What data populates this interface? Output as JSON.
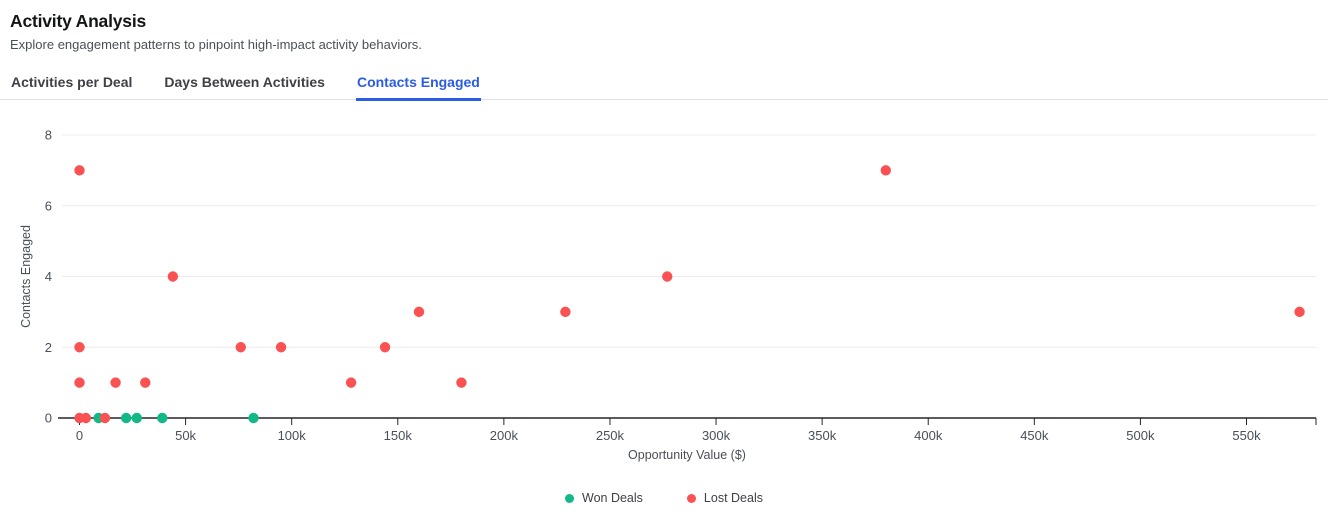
{
  "header": {
    "title": "Activity Analysis",
    "subtitle": "Explore engagement patterns to pinpoint high-impact activity behaviors."
  },
  "tabs": [
    {
      "label": "Activities per Deal",
      "active": false
    },
    {
      "label": "Days Between Activities",
      "active": false
    },
    {
      "label": "Contacts Engaged",
      "active": true
    }
  ],
  "colors": {
    "accent": "#2b5ce6",
    "won": "#12b886",
    "lost": "#fa5252",
    "grid": "#e9ecef",
    "axis": "#25262b",
    "tick_text": "#495057"
  },
  "chart_data": {
    "type": "scatter",
    "xlabel": "Opportunity Value ($)",
    "ylabel": "Contacts Engaged",
    "xlim": [
      -10000,
      585000
    ],
    "ylim": [
      0,
      8
    ],
    "grid": "horizontal",
    "legend_position": "bottom",
    "x_ticks": [
      {
        "value": 0,
        "label": "0"
      },
      {
        "value": 50000,
        "label": "50k"
      },
      {
        "value": 100000,
        "label": "100k"
      },
      {
        "value": 150000,
        "label": "150k"
      },
      {
        "value": 200000,
        "label": "200k"
      },
      {
        "value": 250000,
        "label": "250k"
      },
      {
        "value": 300000,
        "label": "300k"
      },
      {
        "value": 350000,
        "label": "350k"
      },
      {
        "value": 400000,
        "label": "400k"
      },
      {
        "value": 450000,
        "label": "450k"
      },
      {
        "value": 500000,
        "label": "500k"
      },
      {
        "value": 550000,
        "label": "550k"
      }
    ],
    "y_ticks": [
      {
        "value": 0,
        "label": "0"
      },
      {
        "value": 2,
        "label": "2"
      },
      {
        "value": 4,
        "label": "4"
      },
      {
        "value": 6,
        "label": "6"
      },
      {
        "value": 8,
        "label": "8"
      }
    ],
    "series": [
      {
        "name": "Won Deals",
        "color": "#12b886",
        "points": [
          [
            9000,
            0
          ],
          [
            22000,
            0
          ],
          [
            27000,
            0
          ],
          [
            39000,
            0
          ],
          [
            82000,
            0
          ]
        ]
      },
      {
        "name": "Lost Deals",
        "color": "#fa5252",
        "points": [
          [
            0,
            0
          ],
          [
            3000,
            0
          ],
          [
            12000,
            0
          ],
          [
            0,
            1
          ],
          [
            17000,
            1
          ],
          [
            31000,
            1
          ],
          [
            0,
            2
          ],
          [
            44000,
            4
          ],
          [
            76000,
            2
          ],
          [
            95000,
            2
          ],
          [
            128000,
            1
          ],
          [
            144000,
            2
          ],
          [
            160000,
            3
          ],
          [
            180000,
            1
          ],
          [
            229000,
            3
          ],
          [
            277000,
            4
          ],
          [
            0,
            7
          ],
          [
            380000,
            7
          ],
          [
            575000,
            3
          ]
        ]
      }
    ]
  }
}
